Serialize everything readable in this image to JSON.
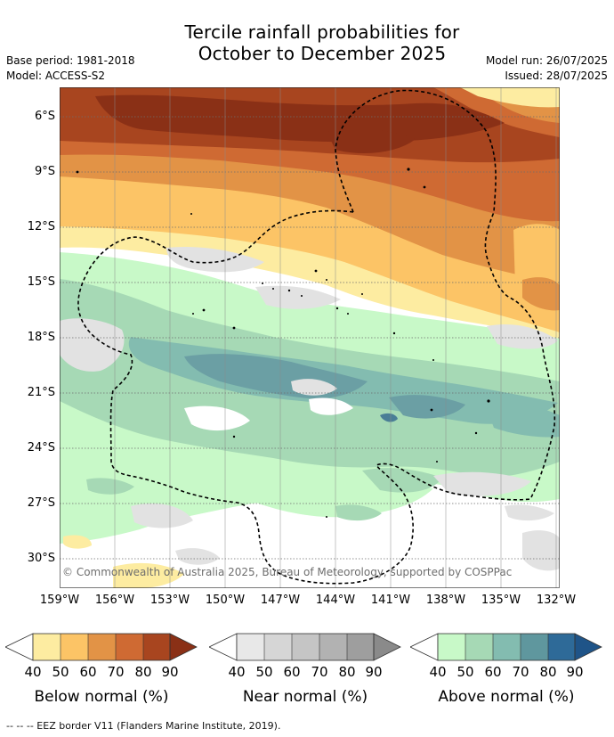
{
  "title": {
    "line1": "Tercile rainfall probabilities for",
    "line2": "October to December 2025"
  },
  "meta": {
    "base_period": "Base period: 1981-2018",
    "model": "Model: ACCESS-S2",
    "model_run": "Model run: 26/07/2025",
    "issued": "Issued: 28/07/2025"
  },
  "map": {
    "lat_ticks": [
      "6°S",
      "9°S",
      "12°S",
      "15°S",
      "18°S",
      "21°S",
      "24°S",
      "27°S",
      "30°S"
    ],
    "lon_ticks": [
      "159°W",
      "156°W",
      "153°W",
      "150°W",
      "147°W",
      "144°W",
      "141°W",
      "138°W",
      "135°W",
      "132°W"
    ],
    "copyright": "© Commonwealth of Australia 2025, Bureau of Meteorology, supported by COSPPac",
    "colors": {
      "below": [
        "#fdeca1",
        "#fcc466",
        "#e29346",
        "#cf6a33",
        "#a8451f",
        "#8a3016"
      ],
      "near": [
        "#e2e2e2",
        "#cfcfcf",
        "#bdbdbd",
        "#a9a9a9",
        "#919191"
      ],
      "above": [
        "#c8f9c8",
        "#a6d9b5",
        "#83bcb0",
        "#6b9fa4",
        "#4a7e96",
        "#315f8e"
      ]
    }
  },
  "legend": {
    "ticks": [
      "40",
      "50",
      "60",
      "70",
      "80",
      "90"
    ],
    "below": {
      "label": "Below normal (%)",
      "colors": [
        "#fdeca1",
        "#fcc466",
        "#e29346",
        "#cf6a33",
        "#a8451f",
        "#8a3016"
      ]
    },
    "near": {
      "label": "Near normal (%)",
      "colors": [
        "#e8e8e8",
        "#d6d6d6",
        "#c5c5c5",
        "#b2b2b2",
        "#9e9e9e",
        "#8a8a8a"
      ]
    },
    "above": {
      "label": "Above normal (%)",
      "colors": [
        "#c8f9c8",
        "#a6d9b5",
        "#83bcb0",
        "#5f979e",
        "#2e6a98",
        "#1f5488"
      ]
    }
  },
  "footnote": "-- -- -- EEZ border V11 (Flanders Marine Institute, 2019)."
}
